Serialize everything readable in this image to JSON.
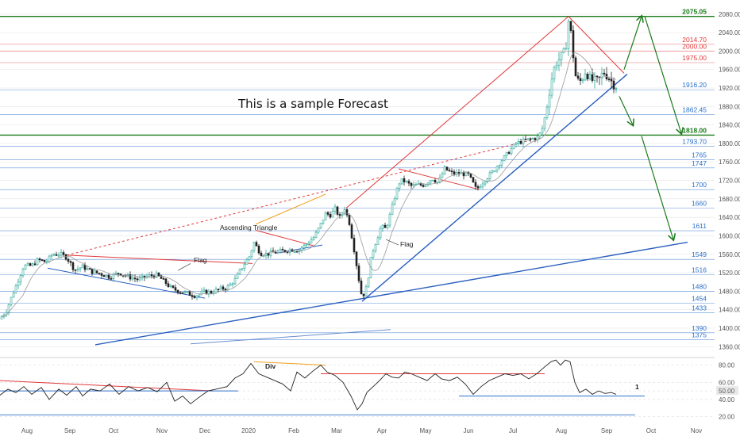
{
  "chart_data": [
    {
      "type": "candlestick",
      "title": "This is a sample Forecast",
      "x_ticks": [
        "Aug",
        "Sep",
        "Oct",
        "Nov",
        "Dec",
        "2020",
        "Feb",
        "Mar",
        "Apr",
        "May",
        "Jun",
        "Jul",
        "Aug",
        "Sep",
        "Oct",
        "Nov"
      ],
      "y_ticks": [
        1360,
        1400,
        1440,
        1480,
        1520,
        1560,
        1600,
        1640,
        1680,
        1720,
        1760,
        1800,
        1840,
        1880,
        1920,
        1960,
        2000,
        2040,
        2080
      ],
      "ylim": [
        1345,
        2090
      ],
      "levels": [
        {
          "value": 2075.05,
          "label": "2075.05",
          "color": "#1b7a1b",
          "bold": true
        },
        {
          "value": 2014.7,
          "label": "2014.70",
          "color": "#e03a3a",
          "bold": false
        },
        {
          "value": 2000.0,
          "label": "2000.00",
          "color": "#e03a3a",
          "bold": false
        },
        {
          "value": 1975.0,
          "label": "1975.00",
          "color": "#e03a3a",
          "bold": false
        },
        {
          "value": 1916.2,
          "label": "1916.20",
          "color": "#2a6fc9",
          "bold": false
        },
        {
          "value": 1862.45,
          "label": "1862.45",
          "color": "#2a6fc9",
          "bold": false
        },
        {
          "value": 1818.0,
          "label": "1818.00",
          "color": "#1b7a1b",
          "bold": true
        },
        {
          "value": 1793.7,
          "label": "1793.70",
          "color": "#2a6fc9",
          "bold": false
        },
        {
          "value": 1765,
          "label": "1765",
          "color": "#2a6fc9",
          "bold": false
        },
        {
          "value": 1747,
          "label": "1747",
          "color": "#2a6fc9",
          "bold": false
        },
        {
          "value": 1700,
          "label": "1700",
          "color": "#2a6fc9",
          "bold": false
        },
        {
          "value": 1660,
          "label": "1660",
          "color": "#2a6fc9",
          "bold": false
        },
        {
          "value": 1611,
          "label": "1611",
          "color": "#2a6fc9",
          "bold": false
        },
        {
          "value": 1549,
          "label": "1549",
          "color": "#2a6fc9",
          "bold": false
        },
        {
          "value": 1516,
          "label": "1516",
          "color": "#2a6fc9",
          "bold": false
        },
        {
          "value": 1480,
          "label": "1480",
          "color": "#2a6fc9",
          "bold": false
        },
        {
          "value": 1454,
          "label": "1454",
          "color": "#2a6fc9",
          "bold": false
        },
        {
          "value": 1433,
          "label": "1433",
          "color": "#2a6fc9",
          "bold": false
        },
        {
          "value": 1390,
          "label": "1390",
          "color": "#2a6fc9",
          "bold": false
        },
        {
          "value": 1375,
          "label": "1375",
          "color": "#2a6fc9",
          "bold": false
        }
      ],
      "price_path": [
        [
          0,
          1420
        ],
        [
          8,
          1438
        ],
        [
          15,
          1470
        ],
        [
          22,
          1500
        ],
        [
          30,
          1535
        ],
        [
          40,
          1535
        ],
        [
          48,
          1548
        ],
        [
          58,
          1543
        ],
        [
          66,
          1560
        ],
        [
          76,
          1560
        ],
        [
          84,
          1553
        ],
        [
          94,
          1526
        ],
        [
          104,
          1533
        ],
        [
          116,
          1522
        ],
        [
          126,
          1518
        ],
        [
          138,
          1511
        ],
        [
          150,
          1520
        ],
        [
          162,
          1511
        ],
        [
          174,
          1505
        ],
        [
          186,
          1513
        ],
        [
          198,
          1515
        ],
        [
          208,
          1499
        ],
        [
          216,
          1486
        ],
        [
          226,
          1480
        ],
        [
          236,
          1475
        ],
        [
          246,
          1470
        ],
        [
          256,
          1478
        ],
        [
          266,
          1478
        ],
        [
          276,
          1484
        ],
        [
          286,
          1488
        ],
        [
          296,
          1505
        ],
        [
          306,
          1535
        ],
        [
          314,
          1555
        ],
        [
          320,
          1585
        ],
        [
          328,
          1562
        ],
        [
          336,
          1560
        ],
        [
          346,
          1565
        ],
        [
          356,
          1567
        ],
        [
          366,
          1570
        ],
        [
          376,
          1569
        ],
        [
          386,
          1582
        ],
        [
          396,
          1598
        ],
        [
          404,
          1625
        ],
        [
          410,
          1648
        ],
        [
          416,
          1645
        ],
        [
          422,
          1658
        ],
        [
          428,
          1640
        ],
        [
          434,
          1660
        ],
        [
          440,
          1628
        ],
        [
          446,
          1570
        ],
        [
          452,
          1505
        ],
        [
          456,
          1465
        ],
        [
          462,
          1490
        ],
        [
          468,
          1560
        ],
        [
          474,
          1590
        ],
        [
          480,
          1620
        ],
        [
          486,
          1615
        ],
        [
          492,
          1650
        ],
        [
          498,
          1690
        ],
        [
          504,
          1720
        ],
        [
          510,
          1718
        ],
        [
          518,
          1708
        ],
        [
          526,
          1710
        ],
        [
          534,
          1710
        ],
        [
          544,
          1725
        ],
        [
          552,
          1715
        ],
        [
          560,
          1745
        ],
        [
          570,
          1735
        ],
        [
          580,
          1735
        ],
        [
          590,
          1732
        ],
        [
          600,
          1700
        ],
        [
          610,
          1720
        ],
        [
          620,
          1738
        ],
        [
          630,
          1760
        ],
        [
          640,
          1780
        ],
        [
          650,
          1800
        ],
        [
          660,
          1806
        ],
        [
          670,
          1810
        ],
        [
          676,
          1812
        ],
        [
          682,
          1825
        ],
        [
          688,
          1870
        ],
        [
          694,
          1935
        ],
        [
          700,
          1975
        ],
        [
          706,
          1985
        ],
        [
          712,
          2000
        ],
        [
          716,
          2065
        ],
        [
          720,
          2030
        ],
        [
          724,
          1950
        ],
        [
          728,
          1935
        ],
        [
          732,
          1935
        ],
        [
          738,
          1960
        ],
        [
          742,
          1940
        ],
        [
          748,
          1935
        ],
        [
          754,
          1935
        ],
        [
          760,
          1955
        ],
        [
          766,
          1945
        ],
        [
          772,
          1930
        ],
        [
          776,
          1925
        ]
      ],
      "lines": [
        {
          "name": "",
          "points": [
            [
              84,
              1558
            ],
            [
              318,
              1540
            ]
          ],
          "color": "#e03a3a",
          "role": "flag-upper"
        },
        {
          "name": "",
          "points": [
            [
              60,
              1530
            ],
            [
              258,
              1465
            ]
          ],
          "color": "#2a5fbf",
          "role": "flag-lower"
        },
        {
          "name": "",
          "points": [
            [
              322,
              1612
            ],
            [
              396,
              1578
            ]
          ],
          "color": "#e03a3a",
          "role": "triangle-top"
        },
        {
          "name": "",
          "points": [
            [
              322,
              1625
            ],
            [
              410,
              1690
            ]
          ],
          "color": "#f0a020",
          "role": "triangle-edge"
        },
        {
          "name": "",
          "points": [
            [
              346,
              1562
            ],
            [
              406,
              1580
            ]
          ],
          "color": "#2a5fbf",
          "role": "triangle-base"
        },
        {
          "name": "",
          "points": [
            [
              502,
              1745
            ],
            [
              604,
              1700
            ]
          ],
          "color": "#e03a3a",
          "role": "flag2"
        },
        {
          "name": "",
          "points": [
            [
              84,
              1558
            ],
            [
              680,
              1812
            ]
          ],
          "color": "#e03a3a",
          "role": "dashed-trend"
        },
        {
          "name": "",
          "points": [
            [
              436,
              1660
            ],
            [
              716,
              2075
            ]
          ],
          "color": "#e03a3a",
          "role": "channel-up"
        },
        {
          "name": "",
          "points": [
            [
              716,
              2075
            ],
            [
              786,
              1952
            ]
          ],
          "color": "#e03a3a",
          "role": "pennant-top"
        },
        {
          "name": "",
          "points": [
            [
              456,
              1458
            ],
            [
              790,
              1950
            ]
          ],
          "color": "#2a5fbf",
          "role": "main-uptrend"
        },
        {
          "name": "",
          "points": [
            [
              120,
              1364
            ],
            [
              866,
              1586
            ]
          ],
          "color": "#2a5fbf",
          "role": "long-uptrend"
        },
        {
          "name": "",
          "points": [
            [
              240,
              1366
            ],
            [
              492,
              1397
            ]
          ],
          "color": "#6a8fd0",
          "role": "faint-trend"
        }
      ],
      "annotations": [
        {
          "text": "Flag",
          "x": 244,
          "y": 1542
        },
        {
          "text": "Ascending Triangle",
          "x": 277,
          "y": 1613
        },
        {
          "text": "Flag",
          "x": 504,
          "y": 1577
        }
      ],
      "arrows": [
        {
          "from": [
            786,
            1960
          ],
          "to": [
            808,
            2075
          ]
        },
        {
          "from": [
            812,
            2075
          ],
          "to": [
            858,
            1822
          ]
        },
        {
          "from": [
            780,
            1902
          ],
          "to": [
            797,
            1840
          ]
        },
        {
          "from": [
            808,
            1816
          ],
          "to": [
            848,
            1592
          ]
        }
      ]
    },
    {
      "type": "line",
      "title": "",
      "indicator_label": "Div",
      "marker_label": "1",
      "y_ticks": [
        20,
        40,
        50,
        60,
        80
      ],
      "highlight_value": "50.00",
      "ylim": [
        14,
        88
      ],
      "series": [
        {
          "values": [
            [
              0,
              45
            ],
            [
              10,
              52
            ],
            [
              20,
              48
            ],
            [
              30,
              55
            ],
            [
              40,
              46
            ],
            [
              52,
              54
            ],
            [
              62,
              40
            ],
            [
              74,
              52
            ],
            [
              84,
              45
            ],
            [
              96,
              55
            ],
            [
              104,
              44
            ],
            [
              114,
              52
            ],
            [
              126,
              50
            ],
            [
              138,
              58
            ],
            [
              150,
              46
            ],
            [
              162,
              55
            ],
            [
              174,
              50
            ],
            [
              186,
              54
            ],
            [
              198,
              49
            ],
            [
              210,
              60
            ],
            [
              220,
              38
            ],
            [
              230,
              44
            ],
            [
              240,
              35
            ],
            [
              250,
              42
            ],
            [
              262,
              50
            ],
            [
              272,
              52
            ],
            [
              286,
              55
            ],
            [
              296,
              65
            ],
            [
              306,
              70
            ],
            [
              316,
              82
            ],
            [
              326,
              70
            ],
            [
              336,
              66
            ],
            [
              346,
              62
            ],
            [
              356,
              58
            ],
            [
              366,
              50
            ],
            [
              374,
              72
            ],
            [
              384,
              65
            ],
            [
              394,
              73
            ],
            [
              404,
              80
            ],
            [
              412,
              72
            ],
            [
              422,
              68
            ],
            [
              432,
              60
            ],
            [
              442,
              44
            ],
            [
              450,
              28
            ],
            [
              456,
              35
            ],
            [
              462,
              48
            ],
            [
              470,
              55
            ],
            [
              478,
              62
            ],
            [
              486,
              70
            ],
            [
              494,
              66
            ],
            [
              502,
              65
            ],
            [
              510,
              72
            ],
            [
              518,
              70
            ],
            [
              528,
              66
            ],
            [
              538,
              62
            ],
            [
              548,
              70
            ],
            [
              556,
              64
            ],
            [
              566,
              62
            ],
            [
              576,
              66
            ],
            [
              586,
              58
            ],
            [
              596,
              46
            ],
            [
              606,
              55
            ],
            [
              616,
              62
            ],
            [
              626,
              66
            ],
            [
              636,
              70
            ],
            [
              646,
              68
            ],
            [
              656,
              70
            ],
            [
              666,
              64
            ],
            [
              676,
              70
            ],
            [
              686,
              78
            ],
            [
              694,
              84
            ],
            [
              700,
              86
            ],
            [
              706,
              80
            ],
            [
              712,
              86
            ],
            [
              718,
              84
            ],
            [
              724,
              60
            ],
            [
              730,
              48
            ],
            [
              738,
              52
            ],
            [
              746,
              46
            ],
            [
              754,
              50
            ],
            [
              762,
              47
            ],
            [
              770,
              48
            ],
            [
              776,
              46
            ]
          ]
        }
      ]
    }
  ],
  "colors": {
    "up": "#27a69a",
    "down": "#222222",
    "grid": "#e6e6e6",
    "resistance": "#e03a3a",
    "support": "#2a6fc9",
    "target": "#1b7a1b"
  }
}
